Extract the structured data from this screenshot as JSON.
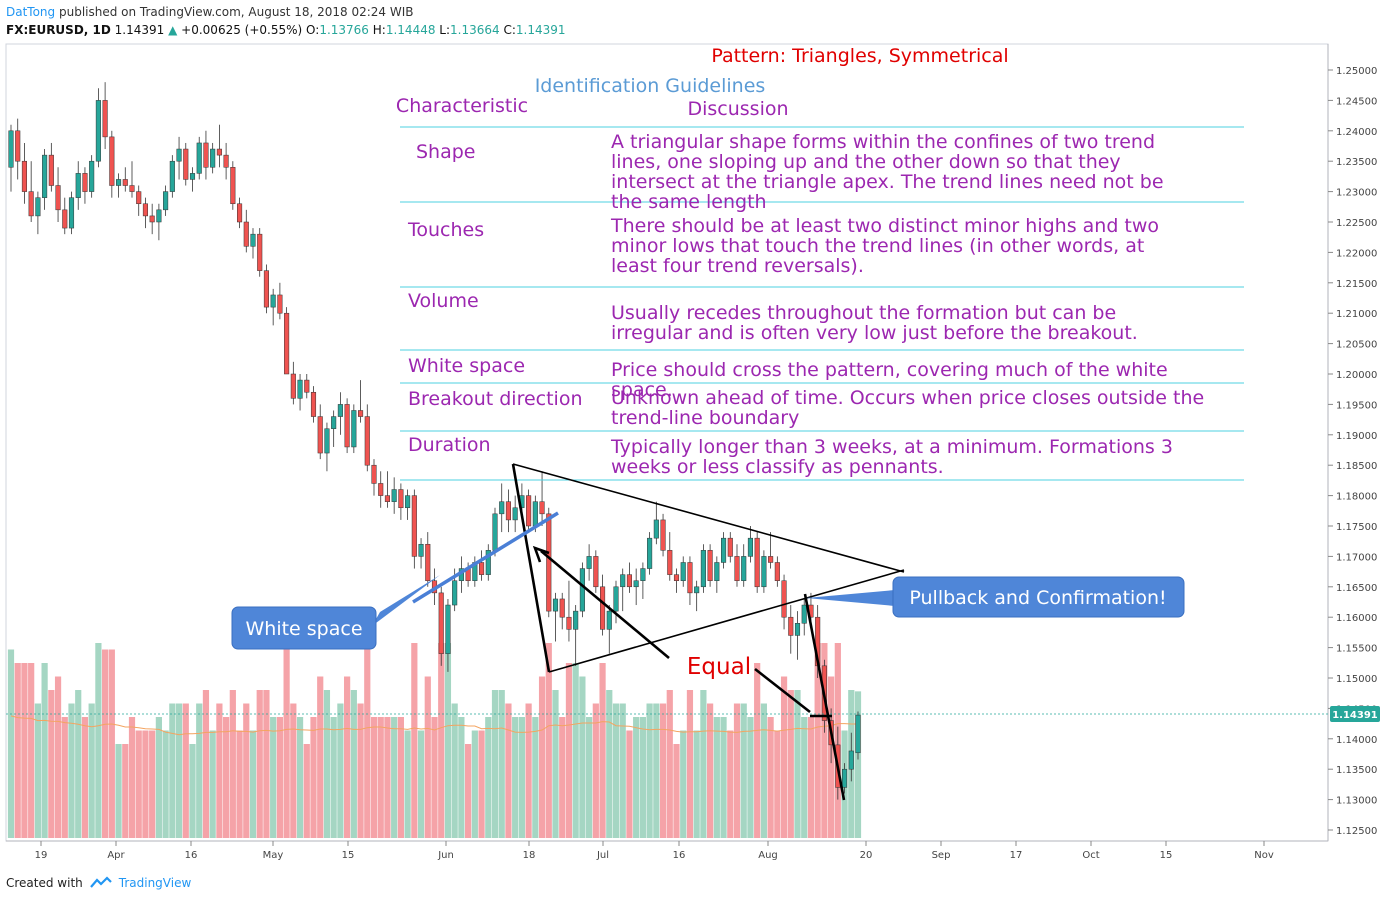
{
  "header": {
    "author": "DatTong",
    "published": "published on TradingView.com, August 18, 2018 02:24 WIB"
  },
  "symbol": {
    "ticker": "FX:EURUSD, 1D",
    "last": "1.14391",
    "change": "+0.00625 (+0.55%)",
    "o_label": "O:",
    "o": "1.13766",
    "h_label": "H:",
    "h": "1.14448",
    "l_label": "L:",
    "l": "1.13664",
    "c_label": "C:",
    "c": "1.14391"
  },
  "footer": {
    "created_with": "Created with",
    "brand": "TradingView"
  },
  "colors": {
    "up": "#26a69a",
    "down": "#ef5350",
    "vol_up": "#a5d6c3",
    "vol_down": "#f5a3a8",
    "annot_purple": "#9c27b0",
    "annot_red": "#e00000",
    "annot_blue": "#5b9bd5",
    "callout_bg": "#4f86d8",
    "sep_line": "#4dd0e1",
    "ma": "#f4a460",
    "price_tag": "#26a69a"
  },
  "chart_data": {
    "type": "candlestick",
    "symbol": "FX:EURUSD",
    "interval": "1D",
    "y_ticks": [
      "1.25000",
      "1.24500",
      "1.24000",
      "1.23500",
      "1.23000",
      "1.22500",
      "1.22000",
      "1.21500",
      "1.21000",
      "1.20500",
      "1.20000",
      "1.19500",
      "1.19000",
      "1.18500",
      "1.18000",
      "1.17500",
      "1.17000",
      "1.16500",
      "1.16000",
      "1.15500",
      "1.15000",
      "1.14500",
      "1.14000",
      "1.13500",
      "1.13000",
      "1.12500"
    ],
    "ylim": [
      1.1225,
      1.2525
    ],
    "x_ticks": [
      "19",
      "Apr",
      "16",
      "May",
      "15",
      "Jun",
      "18",
      "Jul",
      "16",
      "Aug",
      "20",
      "Sep",
      "17",
      "Oct",
      "15",
      "Nov"
    ],
    "last_price": "1.14391",
    "ohlc": [
      [
        1.234,
        1.241,
        1.23,
        1.24
      ],
      [
        1.24,
        1.242,
        1.232,
        1.235
      ],
      [
        1.235,
        1.238,
        1.228,
        1.23
      ],
      [
        1.23,
        1.235,
        1.225,
        1.226
      ],
      [
        1.226,
        1.23,
        1.223,
        1.229
      ],
      [
        1.229,
        1.237,
        1.227,
        1.236
      ],
      [
        1.236,
        1.238,
        1.23,
        1.231
      ],
      [
        1.231,
        1.234,
        1.225,
        1.227
      ],
      [
        1.227,
        1.229,
        1.223,
        1.224
      ],
      [
        1.224,
        1.23,
        1.223,
        1.229
      ],
      [
        1.229,
        1.235,
        1.227,
        1.233
      ],
      [
        1.233,
        1.234,
        1.228,
        1.23
      ],
      [
        1.23,
        1.236,
        1.229,
        1.235
      ],
      [
        1.235,
        1.247,
        1.234,
        1.245
      ],
      [
        1.245,
        1.248,
        1.237,
        1.239
      ],
      [
        1.239,
        1.24,
        1.229,
        1.231
      ],
      [
        1.231,
        1.233,
        1.229,
        1.232
      ],
      [
        1.232,
        1.234,
        1.23,
        1.231
      ],
      [
        1.231,
        1.235,
        1.229,
        1.23
      ],
      [
        1.23,
        1.231,
        1.226,
        1.228
      ],
      [
        1.228,
        1.229,
        1.224,
        1.226
      ],
      [
        1.226,
        1.228,
        1.223,
        1.225
      ],
      [
        1.225,
        1.228,
        1.222,
        1.227
      ],
      [
        1.227,
        1.231,
        1.226,
        1.23
      ],
      [
        1.23,
        1.236,
        1.229,
        1.235
      ],
      [
        1.235,
        1.239,
        1.232,
        1.237
      ],
      [
        1.237,
        1.238,
        1.231,
        1.232
      ],
      [
        1.232,
        1.234,
        1.23,
        1.233
      ],
      [
        1.233,
        1.239,
        1.232,
        1.238
      ],
      [
        1.238,
        1.24,
        1.232,
        1.234
      ],
      [
        1.234,
        1.238,
        1.233,
        1.237
      ],
      [
        1.237,
        1.241,
        1.234,
        1.236
      ],
      [
        1.236,
        1.238,
        1.232,
        1.234
      ],
      [
        1.234,
        1.235,
        1.227,
        1.228
      ],
      [
        1.228,
        1.229,
        1.224,
        1.225
      ],
      [
        1.225,
        1.227,
        1.22,
        1.221
      ],
      [
        1.221,
        1.224,
        1.219,
        1.223
      ],
      [
        1.223,
        1.224,
        1.216,
        1.217
      ],
      [
        1.217,
        1.218,
        1.21,
        1.211
      ],
      [
        1.211,
        1.214,
        1.208,
        1.213
      ],
      [
        1.213,
        1.215,
        1.209,
        1.21
      ],
      [
        1.21,
        1.211,
        1.2,
        1.2
      ],
      [
        1.2,
        1.202,
        1.195,
        1.196
      ],
      [
        1.196,
        1.2,
        1.194,
        1.199
      ],
      [
        1.199,
        1.2,
        1.196,
        1.197
      ],
      [
        1.197,
        1.198,
        1.192,
        1.193
      ],
      [
        1.193,
        1.195,
        1.186,
        1.187
      ],
      [
        1.187,
        1.192,
        1.184,
        1.191
      ],
      [
        1.191,
        1.194,
        1.188,
        1.193
      ],
      [
        1.193,
        1.197,
        1.19,
        1.195
      ],
      [
        1.195,
        1.196,
        1.187,
        1.188
      ],
      [
        1.188,
        1.195,
        1.187,
        1.194
      ],
      [
        1.194,
        1.199,
        1.192,
        1.193
      ],
      [
        1.193,
        1.195,
        1.184,
        1.185
      ],
      [
        1.185,
        1.186,
        1.18,
        1.182
      ],
      [
        1.182,
        1.184,
        1.178,
        1.18
      ],
      [
        1.18,
        1.184,
        1.178,
        1.179
      ],
      [
        1.179,
        1.183,
        1.177,
        1.181
      ],
      [
        1.181,
        1.182,
        1.176,
        1.178
      ],
      [
        1.178,
        1.181,
        1.176,
        1.18
      ],
      [
        1.18,
        1.181,
        1.168,
        1.17
      ],
      [
        1.17,
        1.173,
        1.168,
        1.172
      ],
      [
        1.172,
        1.174,
        1.165,
        1.166
      ],
      [
        1.166,
        1.168,
        1.162,
        1.164
      ],
      [
        1.164,
        1.165,
        1.152,
        1.154
      ],
      [
        1.154,
        1.163,
        1.151,
        1.162
      ],
      [
        1.162,
        1.168,
        1.161,
        1.166
      ],
      [
        1.166,
        1.17,
        1.164,
        1.168
      ],
      [
        1.168,
        1.169,
        1.165,
        1.166
      ],
      [
        1.166,
        1.17,
        1.165,
        1.169
      ],
      [
        1.169,
        1.171,
        1.166,
        1.167
      ],
      [
        1.167,
        1.172,
        1.166,
        1.171
      ],
      [
        1.171,
        1.178,
        1.17,
        1.177
      ],
      [
        1.177,
        1.182,
        1.174,
        1.179
      ],
      [
        1.179,
        1.181,
        1.174,
        1.176
      ],
      [
        1.176,
        1.18,
        1.174,
        1.178
      ],
      [
        1.178,
        1.182,
        1.176,
        1.18
      ],
      [
        1.18,
        1.181,
        1.174,
        1.175
      ],
      [
        1.175,
        1.18,
        1.174,
        1.179
      ],
      [
        1.179,
        1.184,
        1.175,
        1.177
      ],
      [
        1.177,
        1.178,
        1.16,
        1.161
      ],
      [
        1.161,
        1.164,
        1.156,
        1.163
      ],
      [
        1.163,
        1.164,
        1.158,
        1.16
      ],
      [
        1.16,
        1.166,
        1.156,
        1.158
      ],
      [
        1.158,
        1.162,
        1.152,
        1.161
      ],
      [
        1.161,
        1.169,
        1.16,
        1.168
      ],
      [
        1.168,
        1.172,
        1.166,
        1.17
      ],
      [
        1.17,
        1.171,
        1.164,
        1.165
      ],
      [
        1.165,
        1.167,
        1.157,
        1.158
      ],
      [
        1.158,
        1.162,
        1.154,
        1.161
      ],
      [
        1.161,
        1.166,
        1.159,
        1.165
      ],
      [
        1.165,
        1.168,
        1.161,
        1.167
      ],
      [
        1.167,
        1.169,
        1.164,
        1.165
      ],
      [
        1.165,
        1.168,
        1.162,
        1.166
      ],
      [
        1.166,
        1.169,
        1.163,
        1.168
      ],
      [
        1.168,
        1.174,
        1.167,
        1.173
      ],
      [
        1.173,
        1.179,
        1.172,
        1.176
      ],
      [
        1.176,
        1.177,
        1.17,
        1.171
      ],
      [
        1.171,
        1.174,
        1.166,
        1.167
      ],
      [
        1.167,
        1.168,
        1.164,
        1.166
      ],
      [
        1.166,
        1.17,
        1.165,
        1.169
      ],
      [
        1.169,
        1.17,
        1.162,
        1.164
      ],
      [
        1.164,
        1.166,
        1.161,
        1.165
      ],
      [
        1.165,
        1.172,
        1.164,
        1.171
      ],
      [
        1.171,
        1.172,
        1.165,
        1.166
      ],
      [
        1.166,
        1.17,
        1.164,
        1.169
      ],
      [
        1.169,
        1.174,
        1.168,
        1.173
      ],
      [
        1.173,
        1.174,
        1.169,
        1.17
      ],
      [
        1.17,
        1.172,
        1.165,
        1.166
      ],
      [
        1.166,
        1.172,
        1.165,
        1.17
      ],
      [
        1.17,
        1.175,
        1.169,
        1.173
      ],
      [
        1.173,
        1.174,
        1.164,
        1.165
      ],
      [
        1.165,
        1.171,
        1.164,
        1.17
      ],
      [
        1.17,
        1.174,
        1.168,
        1.169
      ],
      [
        1.169,
        1.17,
        1.165,
        1.166
      ],
      [
        1.166,
        1.167,
        1.158,
        1.16
      ],
      [
        1.16,
        1.162,
        1.154,
        1.157
      ],
      [
        1.157,
        1.161,
        1.153,
        1.159
      ],
      [
        1.159,
        1.163,
        1.157,
        1.162
      ],
      [
        1.162,
        1.164,
        1.158,
        1.16
      ],
      [
        1.16,
        1.162,
        1.15,
        1.152
      ],
      [
        1.152,
        1.153,
        1.141,
        1.143
      ],
      [
        1.143,
        1.145,
        1.136,
        1.139
      ],
      [
        1.139,
        1.142,
        1.13,
        1.132
      ],
      [
        1.132,
        1.136,
        1.131,
        1.135
      ],
      [
        1.135,
        1.141,
        1.133,
        1.138
      ],
      [
        1.1377,
        1.1445,
        1.1366,
        1.1439
      ]
    ],
    "annotations": {
      "title": "Pattern: Triangles, Symmetrical",
      "subtitle": "Identification Guidelines",
      "col_characteristic": "Characteristic",
      "col_discussion": "Discussion",
      "rows": [
        {
          "name": "Shape",
          "text": "A triangular shape forms within the confines of two trend lines, one sloping up and the other down so that they intersect at the triangle apex. The trend lines need not be the same length"
        },
        {
          "name": "Touches",
          "text": "There should be at least two distinct minor highs and two minor lows that touch the trend lines (in other words, at least four trend reversals)."
        },
        {
          "name": "Volume",
          "text": "Usually recedes throughout the formation but can be irregular and is often very low just before the breakout."
        },
        {
          "name": "White space",
          "text": "Price should cross the pattern, covering much of the white space."
        },
        {
          "name": "Breakout direction",
          "text": "Unknown ahead of time. Occurs when price closes outside the trend-line boundary"
        },
        {
          "name": "Duration",
          "text": "Typically longer than 3 weeks, at a minimum. Formations 3 weeks or less classify as pennants."
        }
      ],
      "white_space_label": "White space",
      "equal_label": "Equal",
      "pullback_label": "Pullback and Confirmation!"
    }
  }
}
